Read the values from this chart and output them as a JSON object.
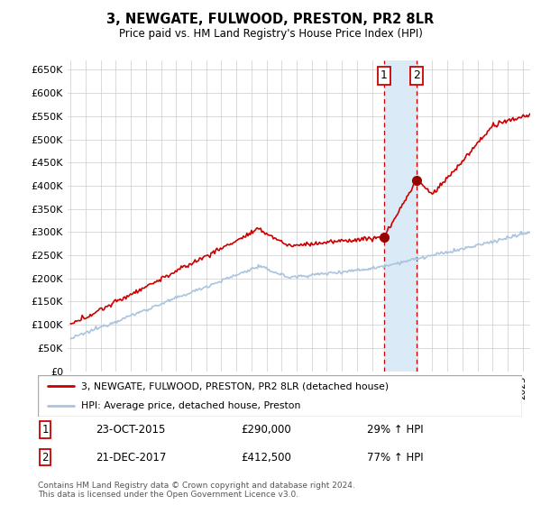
{
  "title": "3, NEWGATE, FULWOOD, PRESTON, PR2 8LR",
  "subtitle": "Price paid vs. HM Land Registry's House Price Index (HPI)",
  "ylim": [
    0,
    670000
  ],
  "yticks": [
    0,
    50000,
    100000,
    150000,
    200000,
    250000,
    300000,
    350000,
    400000,
    450000,
    500000,
    550000,
    600000,
    650000
  ],
  "xlim_start": 1995.0,
  "xlim_end": 2025.5,
  "sale1_date": 2015.81,
  "sale1_price": 290000,
  "sale1_label": "1",
  "sale2_date": 2017.97,
  "sale2_price": 412500,
  "sale2_label": "2",
  "hpi_color": "#aac4e0",
  "house_color": "#cc0000",
  "sale_dot_color": "#990000",
  "vline_color": "#cc0000",
  "shade_color": "#daeaf7",
  "legend_house": "3, NEWGATE, FULWOOD, PRESTON, PR2 8LR (detached house)",
  "legend_hpi": "HPI: Average price, detached house, Preston",
  "note1_label": "1",
  "note1_date": "23-OCT-2015",
  "note1_price": "£290,000",
  "note1_pct": "29% ↑ HPI",
  "note2_label": "2",
  "note2_date": "21-DEC-2017",
  "note2_price": "£412,500",
  "note2_pct": "77% ↑ HPI",
  "footer": "Contains HM Land Registry data © Crown copyright and database right 2024.\nThis data is licensed under the Open Government Licence v3.0."
}
